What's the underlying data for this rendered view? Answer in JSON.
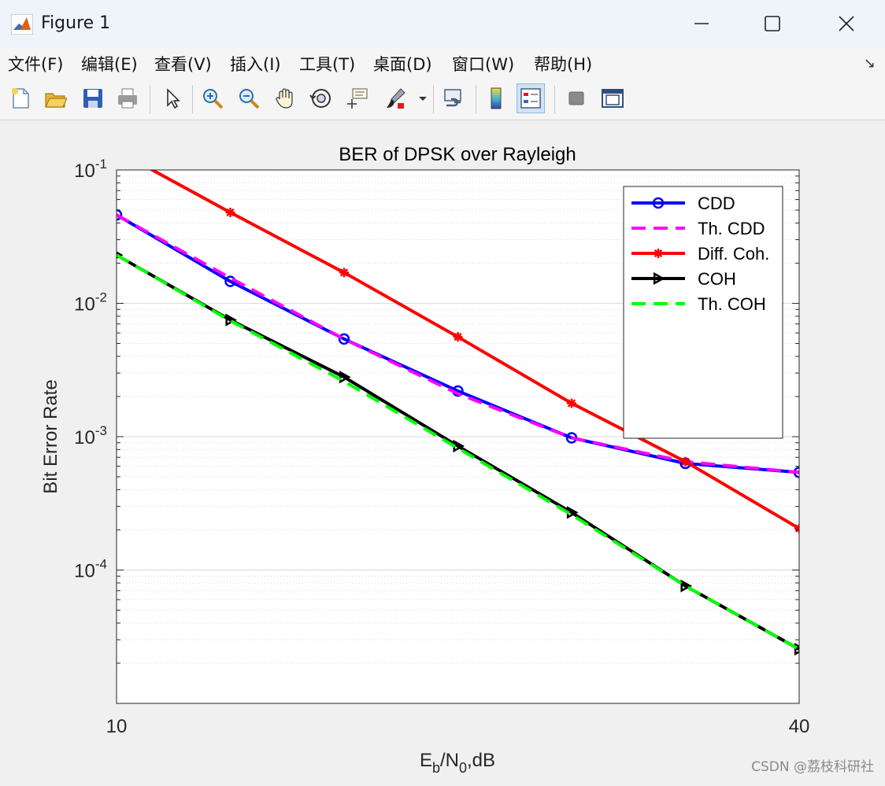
{
  "window": {
    "title": "Figure 1",
    "controls": {
      "minimize": "—",
      "maximize": "☐",
      "close": "✕"
    }
  },
  "menu": {
    "items": [
      "文件(F)",
      "编辑(E)",
      "查看(V)",
      "插入(I)",
      "工具(T)",
      "桌面(D)",
      "窗口(W)",
      "帮助(H)"
    ],
    "overflow_arrow": "↘"
  },
  "toolbar": {
    "buttons": [
      {
        "name": "new-figure-icon"
      },
      {
        "name": "open-file-icon"
      },
      {
        "name": "save-icon"
      },
      {
        "name": "print-icon"
      },
      {
        "name": "pointer-icon"
      },
      {
        "name": "zoom-in-icon"
      },
      {
        "name": "zoom-out-icon"
      },
      {
        "name": "pan-hand-icon"
      },
      {
        "name": "rotate-3d-icon"
      },
      {
        "name": "data-cursor-icon"
      },
      {
        "name": "brush-icon"
      },
      {
        "name": "link-plot-icon"
      },
      {
        "name": "colorbar-icon"
      },
      {
        "name": "legend-icon",
        "active": true
      },
      {
        "name": "hide-plot-tools-icon"
      },
      {
        "name": "show-plot-tools-icon"
      }
    ]
  },
  "chart_data": {
    "type": "line",
    "title": "BER of DPSK over Rayleigh",
    "xlabel": "E_b/N_0,dB",
    "xlabel_parts": {
      "main": "E",
      "sub1": "b",
      "mid": "/N",
      "sub2": "0",
      "tail": ",dB"
    },
    "ylabel": "Bit Error Rate",
    "xlim": [
      10,
      40
    ],
    "ylim": [
      1e-05,
      0.1
    ],
    "yscale": "log",
    "xticks": [
      10,
      40
    ],
    "yticks": [
      {
        "value": 0.1,
        "base": "10",
        "exp": "-1"
      },
      {
        "value": 0.01,
        "base": "10",
        "exp": "-2"
      },
      {
        "value": 0.001,
        "base": "10",
        "exp": "-3"
      },
      {
        "value": 0.0001,
        "base": "10",
        "exp": "-4"
      }
    ],
    "grid": true,
    "legend_position": "top-right",
    "series": [
      {
        "name": "CDD",
        "color": "#0000ff",
        "dash": "solid",
        "marker": "circle",
        "x": [
          10,
          15,
          20,
          25,
          30,
          35,
          40
        ],
        "y": [
          0.046,
          0.0146,
          0.0054,
          0.0022,
          0.00098,
          0.00063,
          0.00054
        ]
      },
      {
        "name": "Th. CDD",
        "color": "#ff00ff",
        "dash": "dashed",
        "marker": "none",
        "x": [
          10,
          15,
          20,
          25,
          30,
          35,
          40
        ],
        "y": [
          0.046,
          0.0155,
          0.0054,
          0.0021,
          0.00098,
          0.00065,
          0.00054
        ]
      },
      {
        "name": "Diff. Coh.",
        "color": "#ff0000",
        "dash": "solid",
        "marker": "asterisk",
        "x": [
          10,
          15,
          20,
          25,
          30,
          35,
          40
        ],
        "y": [
          0.14,
          0.048,
          0.017,
          0.0056,
          0.00178,
          0.00065,
          0.000205
        ]
      },
      {
        "name": "COH",
        "color": "#000000",
        "dash": "solid",
        "marker": "triangle-right",
        "x": [
          10,
          15,
          20,
          25,
          30,
          35,
          40
        ],
        "y": [
          0.023,
          0.0075,
          0.0028,
          0.00085,
          0.00027,
          7.6e-05,
          2.55e-05
        ]
      },
      {
        "name": "Th. COH",
        "color": "#00ff00",
        "dash": "dashed",
        "marker": "none",
        "x": [
          10,
          15,
          20,
          25,
          30,
          35,
          40
        ],
        "y": [
          0.023,
          0.0074,
          0.0026,
          0.00082,
          0.00026,
          7.6e-05,
          2.55e-05
        ]
      }
    ]
  },
  "watermark": "CSDN @荔枝科研社"
}
